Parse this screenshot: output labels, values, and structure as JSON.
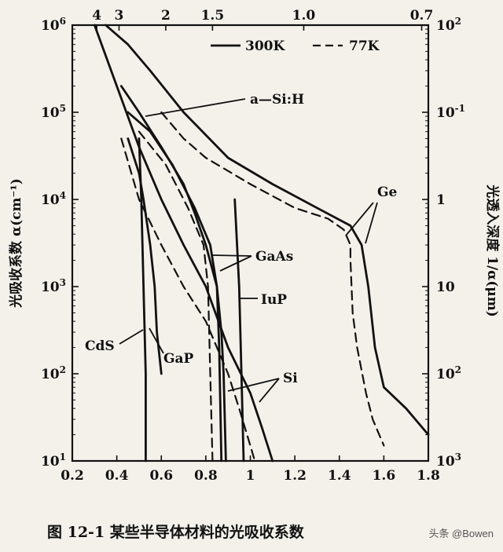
{
  "chart_data": {
    "type": "line",
    "title": "",
    "caption": "图 12-1    某些半导体材料的光吸收系数",
    "watermark": "头条 @Bowen",
    "xlabel": "",
    "x_ticks": [
      "0.2",
      "0.4",
      "0.6",
      "0.8",
      "1",
      "1.2",
      "1.4",
      "1.6",
      "1.8"
    ],
    "xlim": [
      0.2,
      1.8
    ],
    "ylabel": "光吸收系数 α(cm⁻¹)",
    "y_scale": "log",
    "ylim": [
      10,
      1000000
    ],
    "y_ticks": [
      {
        "value": 10,
        "base": "10",
        "exp": "1"
      },
      {
        "value": 100,
        "base": "10",
        "exp": "2"
      },
      {
        "value": 1000,
        "base": "10",
        "exp": "3"
      },
      {
        "value": 10000,
        "base": "10",
        "exp": "4"
      },
      {
        "value": 100000,
        "base": "10",
        "exp": "5"
      },
      {
        "value": 1000000,
        "base": "10",
        "exp": "6"
      }
    ],
    "top_axis_ticks": [
      {
        "label": "4",
        "at": 0.31
      },
      {
        "label": "3",
        "at": 0.41
      },
      {
        "label": "2",
        "at": 0.62
      },
      {
        "label": "1.5",
        "at": 0.83
      },
      {
        "label": "1.0",
        "at": 1.24
      },
      {
        "label": "0.7",
        "at": 1.77
      }
    ],
    "right_axis_label": "光透入深度 1/α(μm)",
    "right_axis_ticks": [
      {
        "at": 10,
        "label": "10",
        "exp": "3"
      },
      {
        "at": 100,
        "label": "10",
        "exp": "2"
      },
      {
        "at": 1000,
        "label": "10",
        "exp": ""
      },
      {
        "at": 10000,
        "label": "1",
        "exp": ""
      },
      {
        "at": 100000,
        "label": "10",
        "exp": "-1"
      },
      {
        "at": 1000000,
        "label": "10",
        "exp": "2"
      }
    ],
    "legend": {
      "placement": "top-right",
      "entries": [
        {
          "label": "300K",
          "style": "solid"
        },
        {
          "label": "77K",
          "style": "dashed"
        }
      ]
    },
    "series": [
      {
        "material": "Ge",
        "temp": "300K",
        "style": "solid",
        "points": [
          [
            0.35,
            1000000
          ],
          [
            0.45,
            600000
          ],
          [
            0.55,
            300000
          ],
          [
            0.7,
            100000
          ],
          [
            0.9,
            30000
          ],
          [
            1.1,
            15000
          ],
          [
            1.3,
            8000
          ],
          [
            1.45,
            5000
          ],
          [
            1.5,
            3000
          ],
          [
            1.53,
            1000
          ],
          [
            1.56,
            200
          ],
          [
            1.6,
            70
          ],
          [
            1.7,
            40
          ],
          [
            1.8,
            20
          ]
        ]
      },
      {
        "material": "Ge",
        "temp": "77K",
        "style": "dashed",
        "points": [
          [
            0.6,
            100000
          ],
          [
            0.7,
            50000
          ],
          [
            0.8,
            30000
          ],
          [
            1.0,
            15000
          ],
          [
            1.2,
            8000
          ],
          [
            1.35,
            6000
          ],
          [
            1.42,
            4500
          ],
          [
            1.45,
            3000
          ],
          [
            1.45,
            2000
          ],
          [
            1.46,
            500
          ],
          [
            1.48,
            200
          ],
          [
            1.52,
            60
          ],
          [
            1.55,
            30
          ],
          [
            1.6,
            15
          ]
        ]
      },
      {
        "material": "a-Si:H",
        "temp": "300K",
        "style": "solid",
        "points": [
          [
            0.42,
            200000
          ],
          [
            0.5,
            100000
          ],
          [
            0.6,
            40000
          ],
          [
            0.7,
            15000
          ],
          [
            0.75,
            7000
          ],
          [
            0.8,
            3000
          ],
          [
            0.85,
            1000
          ],
          [
            0.87,
            300
          ],
          [
            0.88,
            100
          ],
          [
            0.89,
            10
          ]
        ]
      },
      {
        "material": "Si",
        "temp": "300K",
        "style": "solid",
        "points": [
          [
            0.3,
            1000000
          ],
          [
            0.4,
            200000
          ],
          [
            0.5,
            40000
          ],
          [
            0.6,
            10000
          ],
          [
            0.7,
            3000
          ],
          [
            0.8,
            1000
          ],
          [
            0.9,
            200
          ],
          [
            1.0,
            60
          ],
          [
            1.05,
            25
          ],
          [
            1.1,
            10
          ]
        ]
      },
      {
        "material": "Si",
        "temp": "77K",
        "style": "dashed",
        "points": [
          [
            0.42,
            50000
          ],
          [
            0.5,
            10000
          ],
          [
            0.6,
            3000
          ],
          [
            0.7,
            1000
          ],
          [
            0.8,
            400
          ],
          [
            0.9,
            100
          ],
          [
            0.95,
            40
          ],
          [
            1.0,
            15
          ],
          [
            1.02,
            10
          ]
        ]
      },
      {
        "material": "GaAs",
        "temp": "300K",
        "style": "solid",
        "points": [
          [
            0.45,
            100000
          ],
          [
            0.55,
            60000
          ],
          [
            0.65,
            25000
          ],
          [
            0.75,
            8000
          ],
          [
            0.82,
            3000
          ],
          [
            0.85,
            1000
          ],
          [
            0.86,
            200
          ],
          [
            0.87,
            10
          ]
        ]
      },
      {
        "material": "GaAs",
        "temp": "77K",
        "style": "dashed",
        "points": [
          [
            0.5,
            60000
          ],
          [
            0.62,
            25000
          ],
          [
            0.72,
            8000
          ],
          [
            0.79,
            3000
          ],
          [
            0.81,
            1000
          ],
          [
            0.82,
            100
          ],
          [
            0.83,
            10
          ]
        ]
      },
      {
        "material": "InP",
        "temp": "300K",
        "style": "solid",
        "points": [
          [
            0.93,
            10000
          ],
          [
            0.95,
            1000
          ],
          [
            0.96,
            100
          ],
          [
            0.97,
            10
          ]
        ]
      },
      {
        "material": "CdS",
        "temp": "300K",
        "style": "solid",
        "points": [
          [
            0.5,
            50000
          ],
          [
            0.51,
            10000
          ],
          [
            0.52,
            1000
          ],
          [
            0.53,
            100
          ],
          [
            0.53,
            10
          ]
        ]
      },
      {
        "material": "GaP",
        "temp": "300K",
        "style": "solid",
        "points": [
          [
            0.45,
            50000
          ],
          [
            0.5,
            20000
          ],
          [
            0.52,
            10000
          ],
          [
            0.55,
            3000
          ],
          [
            0.57,
            1000
          ],
          [
            0.58,
            300
          ],
          [
            0.6,
            100
          ]
        ]
      }
    ],
    "annotations": [
      {
        "text": "a—Si:H"
      },
      {
        "text": "Ge"
      },
      {
        "text": "GaAs"
      },
      {
        "text": "IuP"
      },
      {
        "text": "Si"
      },
      {
        "text": "CdS"
      },
      {
        "text": "GaP"
      }
    ]
  }
}
